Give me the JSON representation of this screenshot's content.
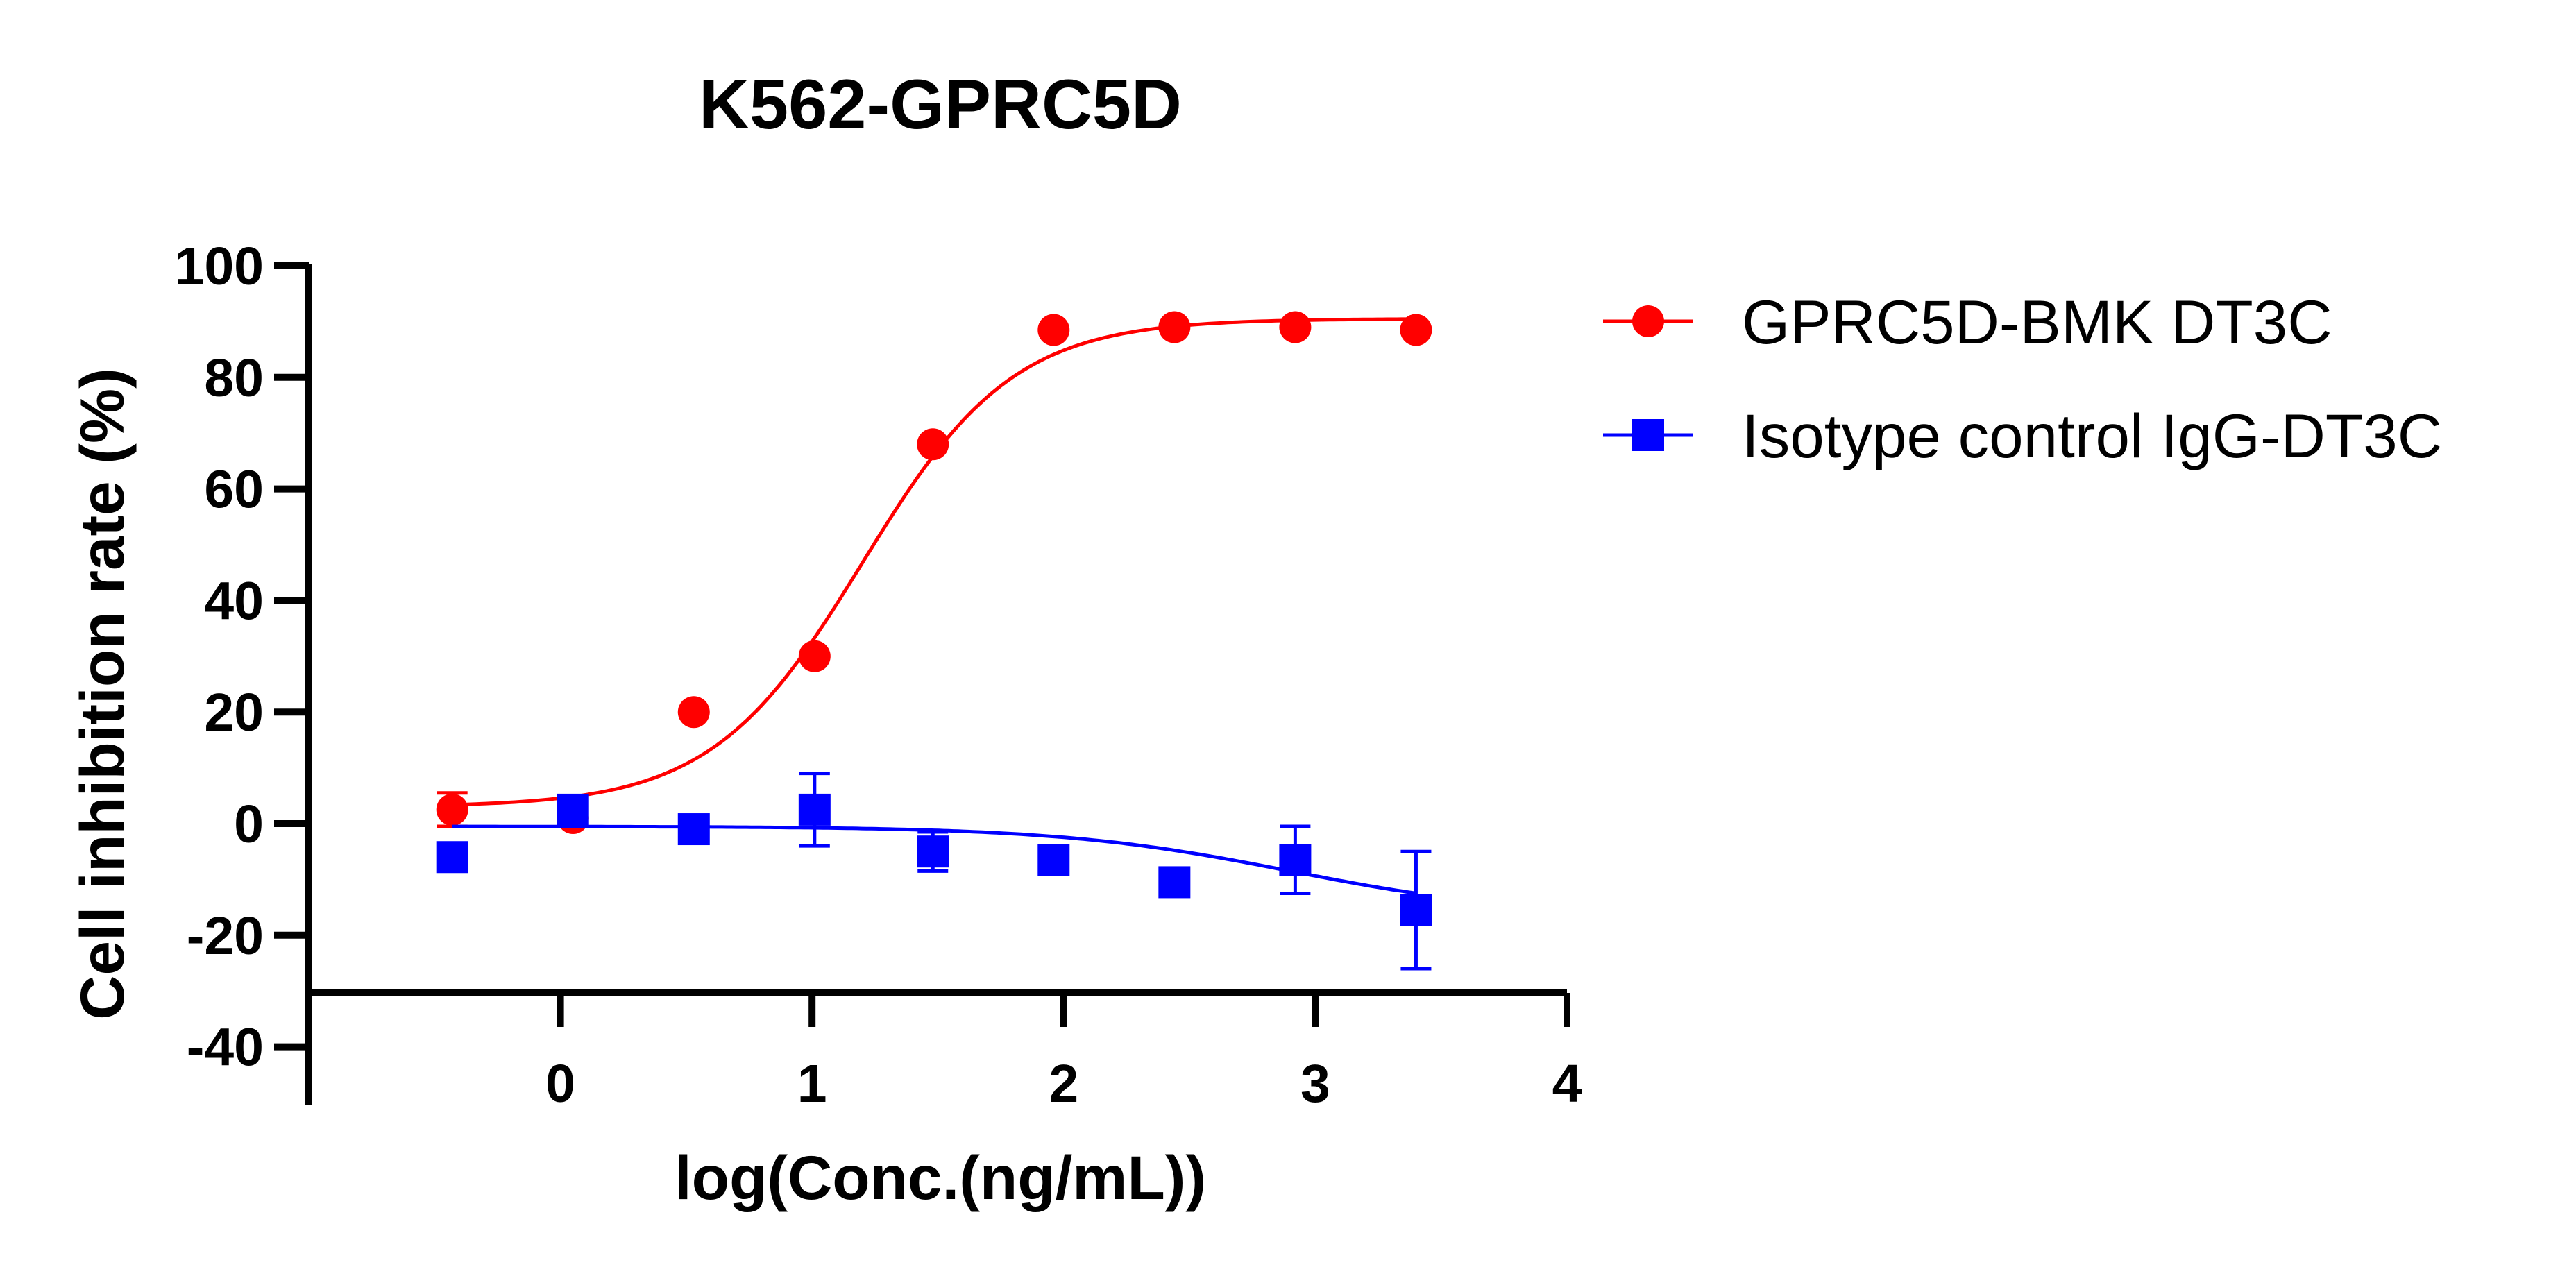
{
  "chart_data": {
    "type": "scatter",
    "title": "K562-GPRC5D",
    "xlabel": "log(Conc.(ng/mL))",
    "ylabel": "Cell inhibition rate (%)",
    "xlim": [
      -1,
      4
    ],
    "ylim": [
      -50,
      100
    ],
    "x_ticks": [
      "0",
      "1",
      "2",
      "3",
      "4"
    ],
    "y_ticks": [
      "100",
      "80",
      "60",
      "40",
      "20",
      "0",
      "-20",
      "-40"
    ],
    "legend_position": "right",
    "grid": false,
    "series": [
      {
        "name": "GPRC5D-BMK DT3C",
        "color": "#ff0000",
        "marker": "circle",
        "x": [
          -0.43,
          0.05,
          0.53,
          1.01,
          1.48,
          1.96,
          2.44,
          2.92,
          3.4
        ],
        "y": [
          2.5,
          1.0,
          20.0,
          30.0,
          68.0,
          88.5,
          89.0,
          89.0,
          88.5
        ],
        "err": [
          3,
          0,
          0,
          0,
          0,
          0,
          0,
          0,
          0
        ],
        "fit": {
          "bottom": 3,
          "top": 90.5,
          "logEC50": 1.2,
          "hill": 1.45
        }
      },
      {
        "name": "Isotype control IgG-DT3C",
        "color": "#0000ff",
        "marker": "square",
        "x": [
          -0.43,
          0.05,
          0.53,
          1.01,
          1.48,
          1.96,
          2.44,
          2.92,
          3.4
        ],
        "y": [
          -6.0,
          2.5,
          -1.0,
          2.5,
          -5.0,
          -6.5,
          -10.5,
          -6.5,
          -15.5
        ],
        "err": [
          0,
          0,
          2.5,
          6.5,
          3.5,
          0,
          0,
          6,
          10.5
        ],
        "fit": {
          "bottom": -0.5,
          "top": -16.5,
          "logEC50": 2.9,
          "hill": 0.95
        }
      }
    ]
  }
}
